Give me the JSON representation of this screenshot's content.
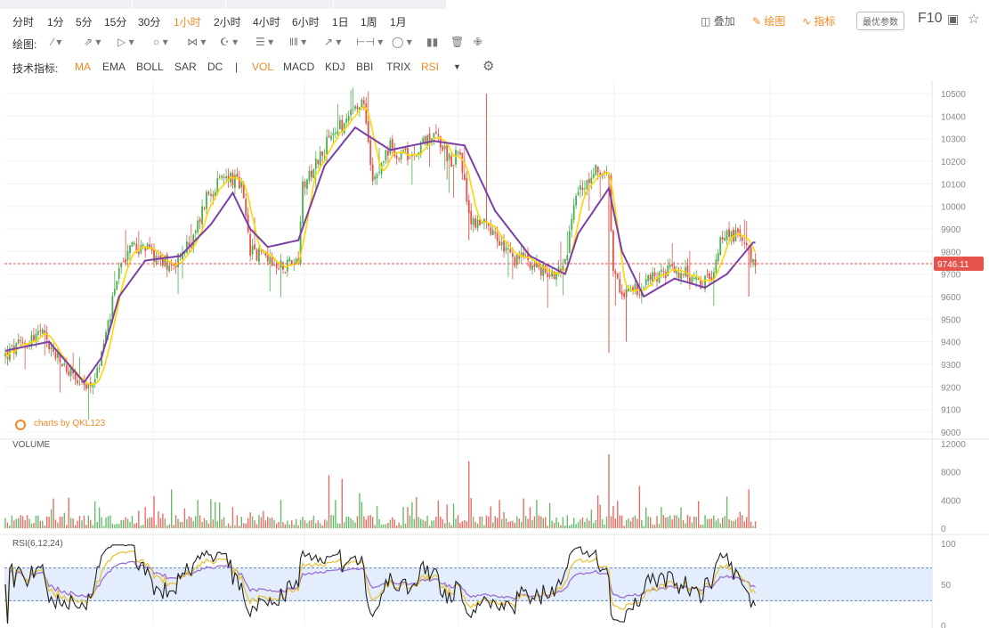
{
  "timeframes": [
    {
      "label": "分时",
      "active": false
    },
    {
      "label": "1分",
      "active": false
    },
    {
      "label": "5分",
      "active": false
    },
    {
      "label": "15分",
      "active": false
    },
    {
      "label": "30分",
      "active": false
    },
    {
      "label": "1小时",
      "active": true
    },
    {
      "label": "2小时",
      "active": false
    },
    {
      "label": "4小时",
      "active": false
    },
    {
      "label": "6小时",
      "active": false
    },
    {
      "label": "1日",
      "active": false
    },
    {
      "label": "1周",
      "active": false
    },
    {
      "label": "1月",
      "active": false
    }
  ],
  "right_tools": {
    "overlay": "叠加",
    "draw": "绘图",
    "indicator": "指标",
    "params": "最优参数",
    "f10": "F10"
  },
  "draw_label": "绘图:",
  "indicator_label": "技术指标:",
  "indicators": [
    {
      "label": "MA",
      "on": true
    },
    {
      "label": "EMA",
      "on": false
    },
    {
      "label": "BOLL",
      "on": false
    },
    {
      "label": "SAR",
      "on": false
    },
    {
      "label": "DC",
      "on": false
    },
    {
      "label": "|",
      "on": false
    },
    {
      "label": "VOL",
      "on": true
    },
    {
      "label": "MACD",
      "on": false
    },
    {
      "label": "KDJ",
      "on": false
    },
    {
      "label": "BBI",
      "on": false
    },
    {
      "label": "TRIX",
      "on": false
    },
    {
      "label": "RSI",
      "on": true
    }
  ],
  "watermark": "charts by QKL123",
  "chart_data": {
    "type": "candlestick",
    "price_axis": {
      "ticks": [
        9000,
        9100,
        9200,
        9300,
        9400,
        9500,
        9600,
        9700,
        9800,
        9900,
        10000,
        10100,
        10200,
        10300,
        10400,
        10500
      ],
      "range": [
        8980,
        10520
      ]
    },
    "last_price": "9746.11",
    "close_anchors": [
      [
        0,
        9340
      ],
      [
        8,
        9390
      ],
      [
        16,
        9440
      ],
      [
        24,
        9320
      ],
      [
        30,
        9260
      ],
      [
        36,
        9180
      ],
      [
        42,
        9260
      ],
      [
        48,
        9520
      ],
      [
        52,
        9720
      ],
      [
        58,
        9830
      ],
      [
        66,
        9800
      ],
      [
        76,
        9740
      ],
      [
        86,
        9850
      ],
      [
        92,
        10050
      ],
      [
        102,
        10140
      ],
      [
        108,
        10080
      ],
      [
        112,
        9800
      ],
      [
        120,
        9780
      ],
      [
        128,
        9740
      ],
      [
        134,
        9780
      ],
      [
        136,
        10100
      ],
      [
        150,
        10320
      ],
      [
        160,
        10420
      ],
      [
        164,
        10450
      ],
      [
        168,
        10140
      ],
      [
        176,
        10260
      ],
      [
        184,
        10220
      ],
      [
        196,
        10330
      ],
      [
        204,
        10200
      ],
      [
        208,
        10250
      ],
      [
        212,
        9940
      ],
      [
        218,
        9920
      ],
      [
        224,
        9860
      ],
      [
        232,
        9760
      ],
      [
        238,
        9780
      ],
      [
        244,
        9720
      ],
      [
        250,
        9700
      ],
      [
        256,
        9740
      ],
      [
        260,
        10020
      ],
      [
        266,
        10120
      ],
      [
        272,
        10170
      ],
      [
        276,
        10100
      ],
      [
        278,
        9680
      ],
      [
        284,
        9620
      ],
      [
        290,
        9640
      ],
      [
        298,
        9700
      ],
      [
        306,
        9720
      ],
      [
        314,
        9680
      ],
      [
        318,
        9640
      ],
      [
        324,
        9700
      ],
      [
        328,
        9880
      ],
      [
        334,
        9870
      ],
      [
        338,
        9860
      ],
      [
        342,
        9760
      ]
    ],
    "candle_count": 344,
    "ma_anchors": [
      [
        0,
        9360
      ],
      [
        20,
        9400
      ],
      [
        36,
        9220
      ],
      [
        44,
        9330
      ],
      [
        52,
        9600
      ],
      [
        64,
        9760
      ],
      [
        80,
        9780
      ],
      [
        94,
        9920
      ],
      [
        104,
        10060
      ],
      [
        112,
        9900
      ],
      [
        120,
        9820
      ],
      [
        134,
        9850
      ],
      [
        146,
        10180
      ],
      [
        160,
        10350
      ],
      [
        176,
        10250
      ],
      [
        196,
        10290
      ],
      [
        210,
        10270
      ],
      [
        224,
        9980
      ],
      [
        240,
        9780
      ],
      [
        256,
        9700
      ],
      [
        262,
        9880
      ],
      [
        276,
        10080
      ],
      [
        282,
        9800
      ],
      [
        292,
        9600
      ],
      [
        306,
        9680
      ],
      [
        320,
        9640
      ],
      [
        330,
        9700
      ],
      [
        342,
        9840
      ]
    ],
    "volume": {
      "label": "VOLUME",
      "ticks": [
        0,
        4000,
        8000,
        12000
      ],
      "range": [
        0,
        12000
      ],
      "spikes": [
        [
          36,
          1800
        ],
        [
          64,
          3000
        ],
        [
          76,
          5500
        ],
        [
          88,
          4000
        ],
        [
          104,
          3000
        ],
        [
          126,
          4000
        ],
        [
          148,
          7500
        ],
        [
          154,
          7000
        ],
        [
          162,
          5000
        ],
        [
          182,
          3000
        ],
        [
          212,
          9500
        ],
        [
          226,
          4000
        ],
        [
          240,
          3000
        ],
        [
          276,
          10500
        ],
        [
          290,
          6000
        ],
        [
          300,
          3000
        ],
        [
          330,
          4500
        ],
        [
          340,
          5500
        ]
      ]
    },
    "rsi": {
      "label": "RSI(6,12,24)",
      "ticks": [
        0,
        50,
        100
      ],
      "range": [
        0,
        100
      ],
      "bands": [
        30,
        70
      ]
    },
    "colors": {
      "up": "#4caf50",
      "down": "#e5534b",
      "ma_fast": "#ffd600",
      "ma_slow": "#7b3fa6",
      "rsi6": "#222222",
      "rsi12": "#e6c440",
      "rsi24": "#9b6fd6",
      "band_fill": "#dce9fb",
      "price_tag": "#e5534b"
    }
  }
}
